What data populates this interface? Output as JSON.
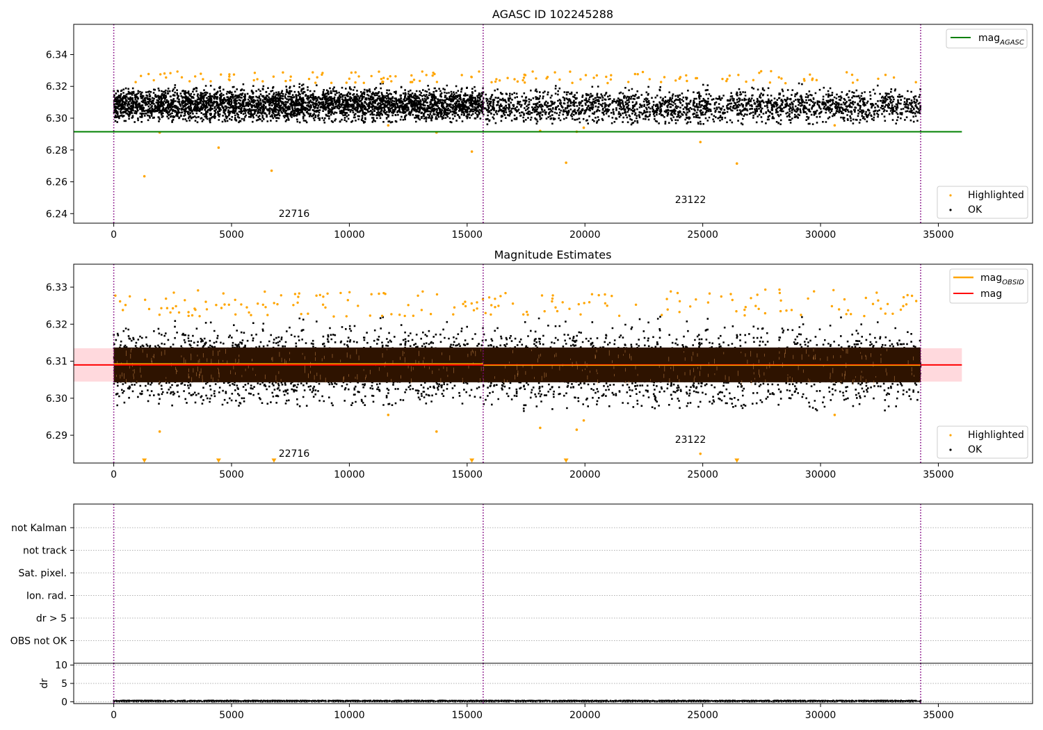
{
  "chart_data": [
    {
      "type": "scatter",
      "title": "AGASC ID 102245288",
      "xlim": [
        -1700,
        39000
      ],
      "ylim": [
        6.234,
        6.359
      ],
      "x_ticks": [
        0,
        5000,
        10000,
        15000,
        20000,
        25000,
        30000,
        35000
      ],
      "y_ticks": [
        6.24,
        6.26,
        6.28,
        6.3,
        6.32,
        6.34
      ],
      "y_tick_labels": [
        "6.24",
        "6.26",
        "6.28",
        "6.30",
        "6.32",
        "6.34"
      ],
      "grid": false,
      "observation_boundaries": [
        0,
        15680,
        34250
      ],
      "observation_labels": [
        {
          "text": "22716",
          "x": 7800,
          "y": 6.2375
        },
        {
          "text": "23122",
          "x": 24950,
          "y": 6.2465
        }
      ],
      "series": [
        {
          "name": "OK",
          "color": "#000000",
          "segments": [
            {
              "x_start": 0,
              "x_end": 15680,
              "center": 6.3085,
              "low": 6.297,
              "high": 6.322
            },
            {
              "x_start": 15680,
              "x_end": 34250,
              "center": 6.3075,
              "low": 6.296,
              "high": 6.322
            }
          ]
        },
        {
          "name": "Highlighted",
          "color": "#ffa500",
          "x": [
            1300,
            1950,
            4450,
            6700,
            11650,
            13700,
            15200,
            18100,
            19200,
            19650,
            19950,
            24900,
            26450,
            30600
          ],
          "y": [
            6.2635,
            6.291,
            6.2815,
            6.267,
            6.2955,
            6.291,
            6.279,
            6.292,
            6.272,
            6.2915,
            6.294,
            6.285,
            6.2715,
            6.2955
          ]
        },
        {
          "name": "mag_AGASC",
          "color": "#008000",
          "type": "hline",
          "y": 6.2915,
          "x_start": -1700,
          "x_end": 36000
        }
      ],
      "legend_upper": {
        "position": "upper-right",
        "entries": [
          {
            "label": "mag",
            "sub": "AGASC"
          }
        ]
      },
      "legend_lower": {
        "position": "lower-right",
        "entries": [
          "Highlighted",
          "OK"
        ]
      }
    },
    {
      "type": "scatter",
      "title": "Magnitude Estimates",
      "xlim": [
        -1700,
        39000
      ],
      "ylim": [
        6.2825,
        6.3362
      ],
      "x_ticks": [
        0,
        5000,
        10000,
        15000,
        20000,
        25000,
        30000,
        35000
      ],
      "y_ticks": [
        6.29,
        6.3,
        6.31,
        6.32,
        6.33
      ],
      "y_tick_labels": [
        "6.29",
        "6.30",
        "6.31",
        "6.32",
        "6.33"
      ],
      "grid": false,
      "observation_boundaries": [
        0,
        15680,
        34250
      ],
      "observation_labels": [
        {
          "text": "22716",
          "x": 7800,
          "y": 6.2852
        },
        {
          "text": "23122",
          "x": 24950,
          "y": 6.2878
        }
      ],
      "mag": {
        "value": 6.309,
        "band": [
          6.3045,
          6.3135
        ],
        "x_start": -1700,
        "x_end": 36000,
        "color": "#ff0000",
        "band_color": "#ffd9dd"
      },
      "mag_obsid": [
        {
          "x_start": 0,
          "x_end": 15680,
          "y": 6.3093
        },
        {
          "x_start": 15680,
          "x_end": 34250,
          "y": 6.3089
        }
      ],
      "series": [
        {
          "name": "OK",
          "color": "#000000",
          "segments": [
            {
              "x_start": 0,
              "x_end": 15680,
              "center": 6.3088,
              "low": 6.2975,
              "high": 6.322
            },
            {
              "x_start": 15680,
              "x_end": 34250,
              "center": 6.3085,
              "low": 6.2965,
              "high": 6.322
            }
          ]
        },
        {
          "name": "Highlighted",
          "color": "#ffa500",
          "x": [
            1950,
            11650,
            13700,
            18100,
            19650,
            19950,
            24900,
            30600
          ],
          "y": [
            6.291,
            6.2955,
            6.291,
            6.292,
            6.2915,
            6.294,
            6.285,
            6.2955
          ]
        },
        {
          "name": "below-range markers",
          "color": "#ffa500",
          "marker": "triangle-down",
          "x": [
            1300,
            4450,
            6800,
            15200,
            19200,
            26450
          ]
        }
      ],
      "legend_upper": {
        "position": "upper-right",
        "entries": [
          {
            "label": "mag",
            "sub": "OBSID"
          },
          {
            "label": "mag"
          }
        ]
      },
      "legend_lower": {
        "position": "lower-right",
        "entries": [
          "Highlighted",
          "OK"
        ]
      }
    },
    {
      "type": "scatter",
      "title": "",
      "xlim": [
        -1700,
        39000
      ],
      "categories": [
        "not Kalman",
        "not track",
        "Sat. pixel.",
        "Ion. rad.",
        "dr > 5",
        "OBS not OK"
      ],
      "grid": true,
      "observation_boundaries": [
        0,
        15680,
        34250
      ],
      "flags_set": []
    },
    {
      "type": "scatter",
      "title": "",
      "ylabel": "dr",
      "xlim": [
        -1700,
        39000
      ],
      "ylim": [
        -0.5,
        10.5
      ],
      "y_ticks": [
        0,
        5,
        10
      ],
      "y_tick_labels": [
        "0",
        "5",
        "10"
      ],
      "x_ticks": [
        0,
        5000,
        10000,
        15000,
        20000,
        25000,
        30000,
        35000
      ],
      "grid": true,
      "observation_boundaries": [
        0,
        15680,
        34250
      ],
      "series": [
        {
          "name": "dr",
          "color": "#000000",
          "x_start": 0,
          "x_end": 34250,
          "low": 0.0,
          "high": 0.35
        }
      ]
    }
  ]
}
